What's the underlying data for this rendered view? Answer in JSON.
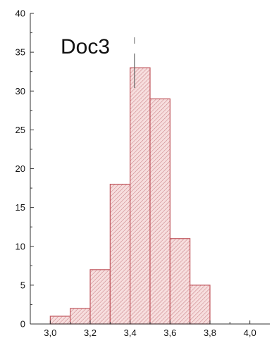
{
  "chart_data": {
    "type": "bar",
    "title": "Doc3",
    "subtitle": "",
    "xlabel": "",
    "ylabel": "",
    "grid": false,
    "legend": "none",
    "xlim": [
      2.9,
      4.1
    ],
    "ylim": [
      0,
      40
    ],
    "bin_width": 0.1,
    "bins": [
      {
        "start": 3.0,
        "end": 3.1,
        "value": 1
      },
      {
        "start": 3.1,
        "end": 3.2,
        "value": 2
      },
      {
        "start": 3.2,
        "end": 3.3,
        "value": 7
      },
      {
        "start": 3.3,
        "end": 3.4,
        "value": 18
      },
      {
        "start": 3.4,
        "end": 3.5,
        "value": 33
      },
      {
        "start": 3.5,
        "end": 3.6,
        "value": 29
      },
      {
        "start": 3.6,
        "end": 3.7,
        "value": 11
      },
      {
        "start": 3.7,
        "end": 3.8,
        "value": 5
      }
    ],
    "x_ticks": [
      {
        "value": 3.0,
        "label": "3,0"
      },
      {
        "value": 3.2,
        "label": "3,2"
      },
      {
        "value": 3.4,
        "label": "3,4"
      },
      {
        "value": 3.6,
        "label": "3,6"
      },
      {
        "value": 3.8,
        "label": "3,8"
      },
      {
        "value": 4.0,
        "label": "4,0"
      }
    ],
    "y_ticks": [
      {
        "value": 0,
        "label": "0"
      },
      {
        "value": 5,
        "label": "5"
      },
      {
        "value": 10,
        "label": "10"
      },
      {
        "value": 15,
        "label": "15"
      },
      {
        "value": 20,
        "label": "20"
      },
      {
        "value": 25,
        "label": "25"
      },
      {
        "value": 30,
        "label": "30"
      },
      {
        "value": 35,
        "label": "35"
      },
      {
        "value": 40,
        "label": "40"
      }
    ],
    "mean_marker": {
      "x": 3.42
    },
    "colors": {
      "bar_fill": "#f7dede",
      "bar_stroke": "#c0575e",
      "hatch": "#c57b80",
      "axis": "#333333",
      "text": "#111111",
      "marker": "#666666"
    }
  }
}
